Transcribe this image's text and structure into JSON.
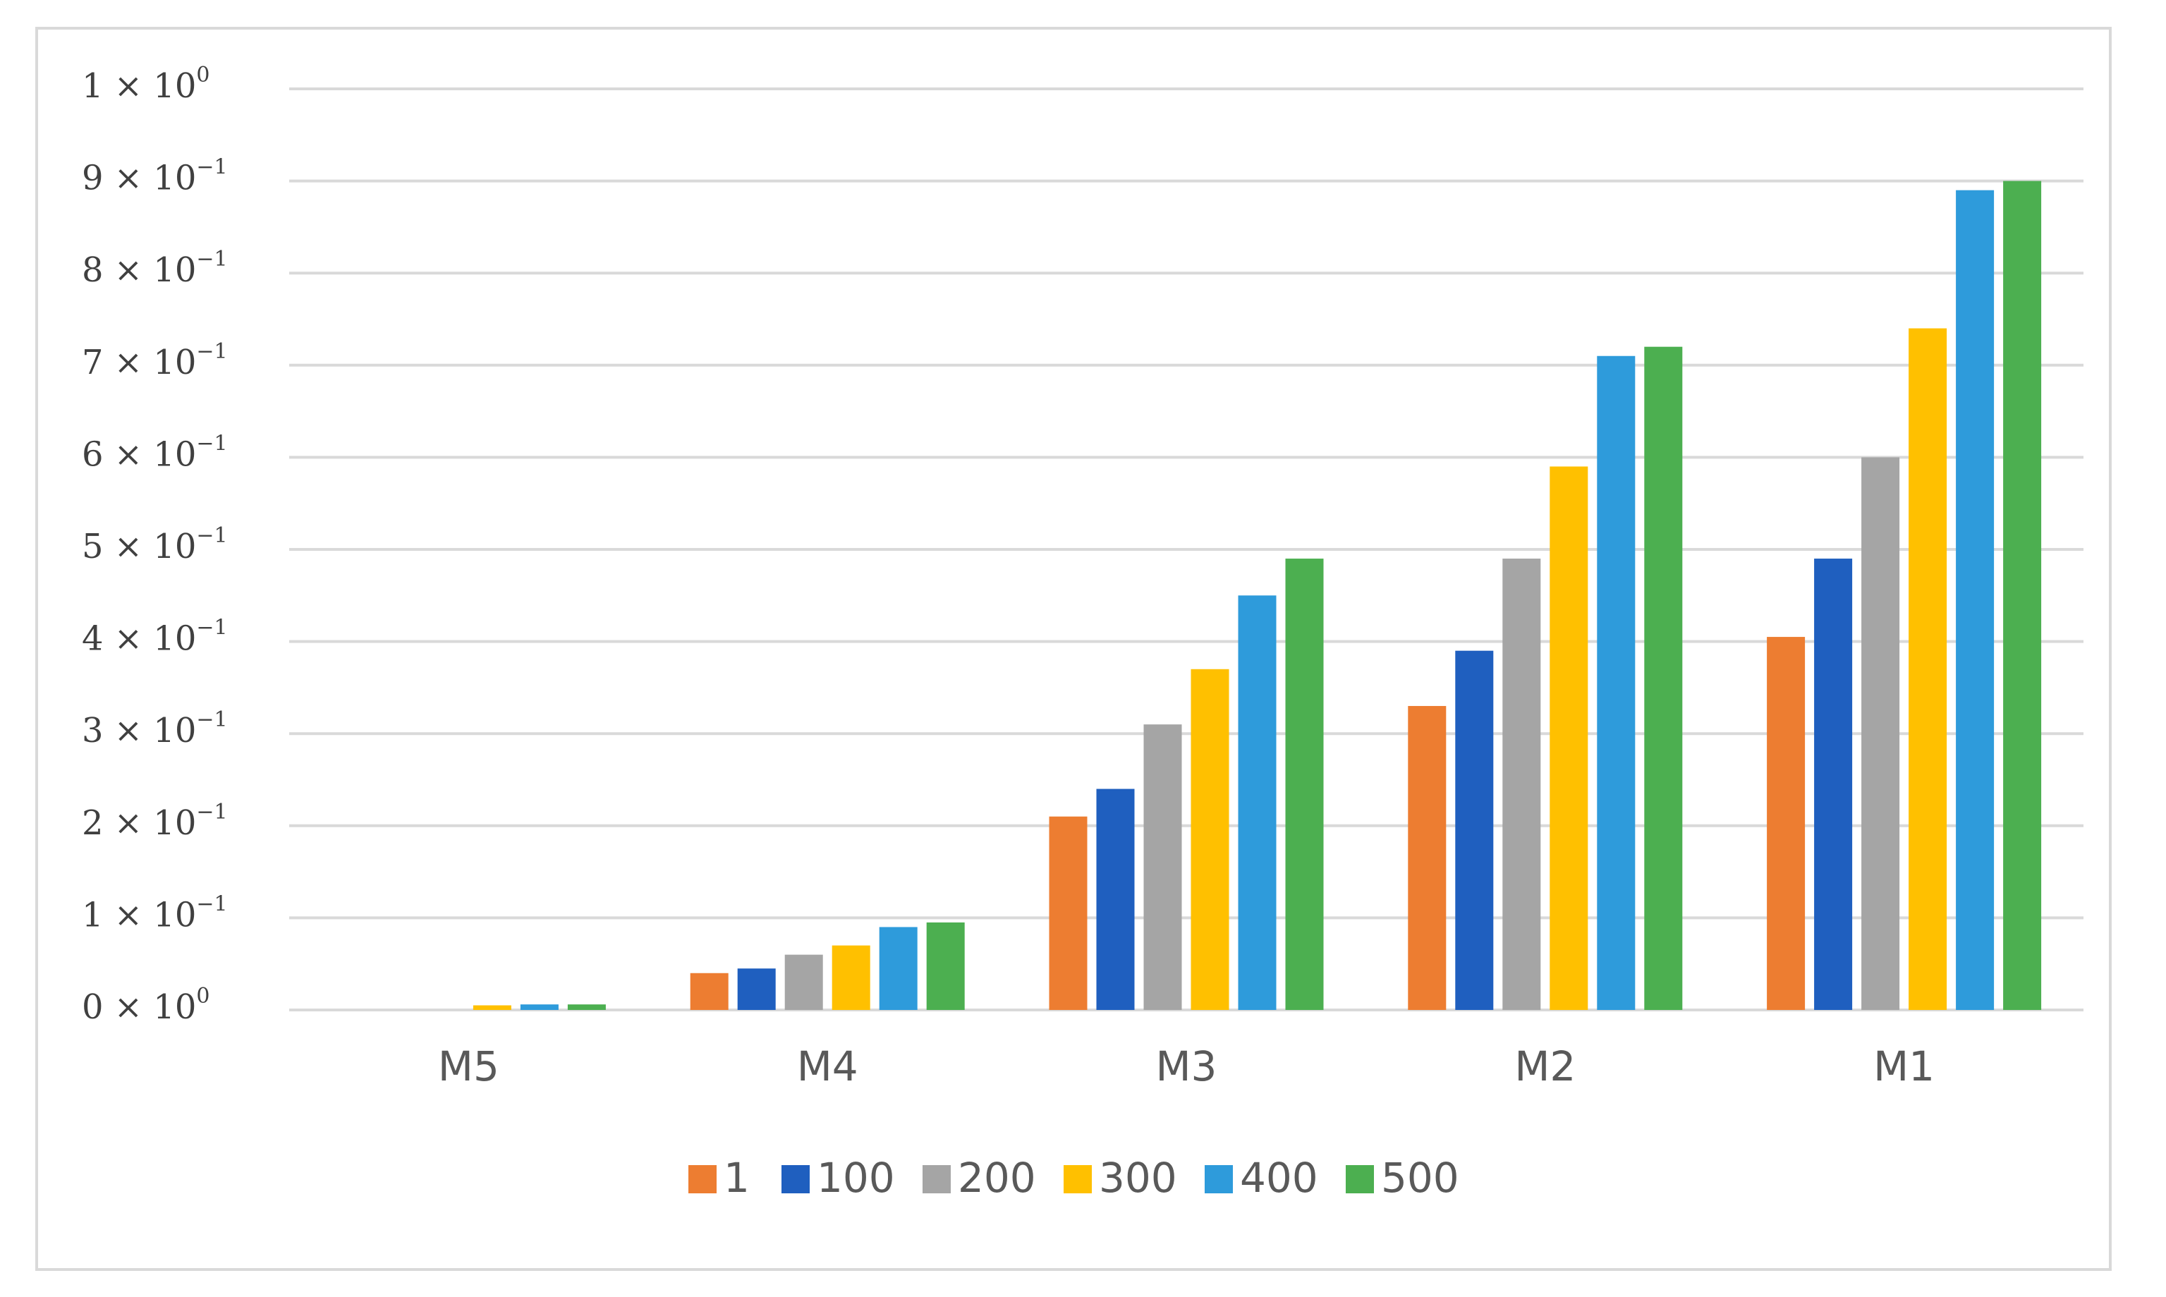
{
  "chart_data": {
    "type": "bar",
    "title": "",
    "xlabel": "",
    "ylabel": "",
    "categories": [
      "M5",
      "M4",
      "M3",
      "M2",
      "M1"
    ],
    "series": [
      {
        "name": "1",
        "color": "#ED7D31",
        "values": [
          0.0,
          0.04,
          0.21,
          0.33,
          0.405
        ]
      },
      {
        "name": "100",
        "color": "#1F5FBF",
        "values": [
          0.0,
          0.045,
          0.24,
          0.39,
          0.49
        ]
      },
      {
        "name": "200",
        "color": "#A5A5A5",
        "values": [
          0.0,
          0.06,
          0.31,
          0.49,
          0.6
        ]
      },
      {
        "name": "300",
        "color": "#FFC000",
        "values": [
          0.005,
          0.07,
          0.37,
          0.59,
          0.74
        ]
      },
      {
        "name": "400",
        "color": "#2E9BDB",
        "values": [
          0.006,
          0.09,
          0.45,
          0.71,
          0.89
        ]
      },
      {
        "name": "500",
        "color": "#4CAF50",
        "values": [
          0.006,
          0.095,
          0.49,
          0.72,
          0.9
        ]
      }
    ],
    "ylim": [
      0,
      1
    ],
    "yticks": [
      {
        "value": 0,
        "mantissa": "0",
        "exponent": "0"
      },
      {
        "value": 0.1,
        "mantissa": "1",
        "exponent": "−1"
      },
      {
        "value": 0.2,
        "mantissa": "2",
        "exponent": "−1"
      },
      {
        "value": 0.3,
        "mantissa": "3",
        "exponent": "−1"
      },
      {
        "value": 0.4,
        "mantissa": "4",
        "exponent": "−1"
      },
      {
        "value": 0.5,
        "mantissa": "5",
        "exponent": "−1"
      },
      {
        "value": 0.6,
        "mantissa": "6",
        "exponent": "−1"
      },
      {
        "value": 0.7,
        "mantissa": "7",
        "exponent": "−1"
      },
      {
        "value": 0.8,
        "mantissa": "8",
        "exponent": "−1"
      },
      {
        "value": 0.9,
        "mantissa": "9",
        "exponent": "−1"
      },
      {
        "value": 1.0,
        "mantissa": "1",
        "exponent": "0"
      }
    ],
    "tick_separator": "× 10",
    "grid": true,
    "legend_position": "bottom-center",
    "gridline_color": "#d9d9d9",
    "text_color": "#595959"
  }
}
